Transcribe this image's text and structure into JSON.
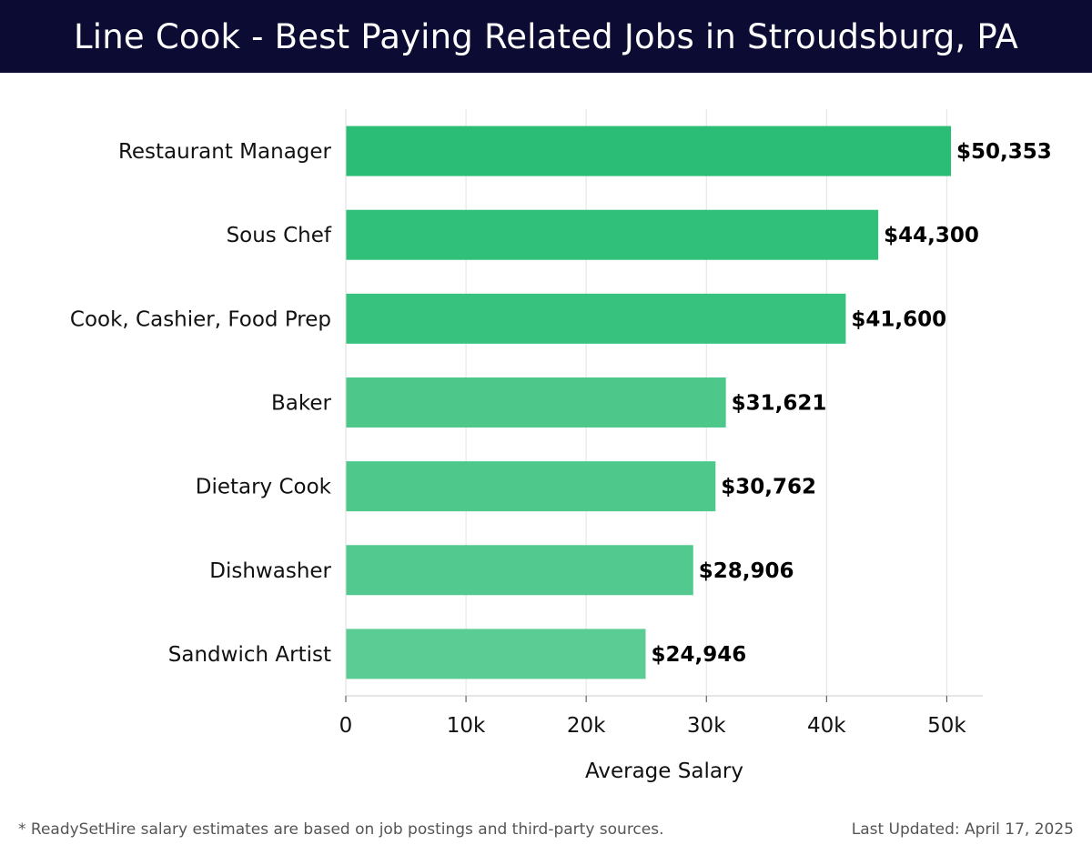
{
  "header": {
    "title": "Line Cook - Best Paying Related Jobs in Stroudsburg, PA"
  },
  "chart_data": {
    "type": "bar",
    "orientation": "horizontal",
    "categories": [
      "Restaurant Manager",
      "Sous Chef",
      "Cook, Cashier, Food Prep",
      "Baker",
      "Dietary Cook",
      "Dishwasher",
      "Sandwich Artist"
    ],
    "values": [
      50353,
      44300,
      41600,
      31621,
      30762,
      28906,
      24946
    ],
    "value_labels": [
      "$50,353",
      "$44,300",
      "$41,600",
      "$31,621",
      "$30,762",
      "$28,906",
      "$24,946"
    ],
    "bar_colors": [
      "#2bbd76",
      "#31c07a",
      "#37c27e",
      "#4ec78b",
      "#4fc88c",
      "#52c98e",
      "#5ccc95"
    ],
    "xlabel": "Average Salary",
    "ylabel": "",
    "xlim": [
      0,
      53000
    ],
    "xticks": [
      0,
      10000,
      20000,
      30000,
      40000,
      50000
    ],
    "xtick_labels": [
      "0",
      "10k",
      "20k",
      "30k",
      "40k",
      "50k"
    ],
    "grid": true
  },
  "footer": {
    "note": "* ReadySetHire salary estimates are based on job postings and third-party sources.",
    "updated": "Last Updated: April 17, 2025"
  }
}
